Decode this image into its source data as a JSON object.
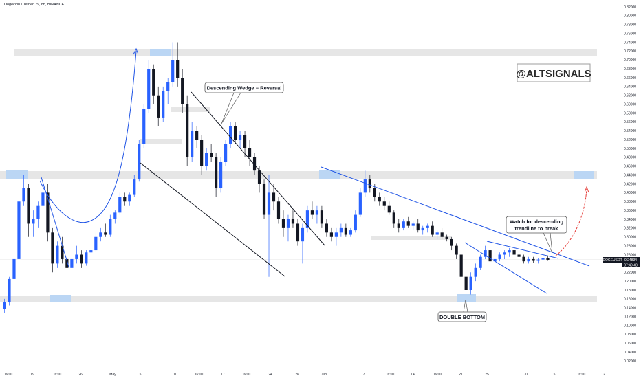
{
  "header": {
    "title": "Dogecoin / TetherUS, 8h, BINANCE"
  },
  "brand": {
    "label": "@ALTSIGNALS"
  },
  "price_tag": {
    "symbol": "DOGEUSDT",
    "price": "0.24834",
    "countdown": "07:49:48"
  },
  "annotations": {
    "wedge": "Descending Wedge = Reversal",
    "watch_line1": "Watch for descending",
    "watch_line2": "trendline to break",
    "double_bottom": "DOUBLE BOTTOM"
  },
  "colors": {
    "up": "#2962ff",
    "down": "#131722",
    "zone": "#e0e0e0",
    "zone_blue": "#bbd6f4",
    "trend_blue": "#1e53e5",
    "trend_black": "#131722",
    "red_arrow": "#e53935"
  },
  "chart_data": {
    "type": "candlestick",
    "title": "Dogecoin / TetherUS, 8h, BINANCE",
    "yticks": [
      "0.82000",
      "0.80000",
      "0.78000",
      "0.76000",
      "0.74000",
      "0.72000",
      "0.70000",
      "0.68000",
      "0.66000",
      "0.64000",
      "0.62000",
      "0.60000",
      "0.58000",
      "0.56000",
      "0.54000",
      "0.52000",
      "0.50000",
      "0.48000",
      "0.46000",
      "0.44000",
      "0.42000",
      "0.40000",
      "0.38000",
      "0.36000",
      "0.34000",
      "0.32000",
      "0.30000",
      "0.28000",
      "0.26000",
      "0.24000",
      "0.22000",
      "0.20000",
      "0.18000",
      "0.16000",
      "0.14000",
      "0.12000",
      "0.10000",
      "0.08000",
      "0.06000",
      "0.04000",
      "0.02000"
    ],
    "xticks": [
      "16:00",
      "19",
      "16:00",
      "26",
      "May",
      "5",
      "10",
      "16:00",
      "17",
      "16:00",
      "24",
      "28",
      "Jun",
      "7",
      "16:00",
      "14",
      "16:00",
      "21",
      "25",
      "Jul",
      "5",
      "16:00",
      "12"
    ],
    "ylim": [
      0.01,
      0.825
    ],
    "grid": false,
    "last_price": 0.24834,
    "zones": [
      0.72,
      0.44,
      0.16,
      0.58,
      0.52,
      0.29
    ],
    "ohlc": [
      [
        0.138,
        0.16,
        0.128,
        0.152
      ],
      [
        0.152,
        0.21,
        0.145,
        0.205
      ],
      [
        0.205,
        0.26,
        0.198,
        0.25
      ],
      [
        0.25,
        0.39,
        0.245,
        0.38
      ],
      [
        0.38,
        0.44,
        0.37,
        0.41
      ],
      [
        0.41,
        0.42,
        0.3,
        0.33
      ],
      [
        0.33,
        0.36,
        0.3,
        0.34
      ],
      [
        0.34,
        0.38,
        0.32,
        0.37
      ],
      [
        0.37,
        0.42,
        0.36,
        0.4
      ],
      [
        0.4,
        0.42,
        0.29,
        0.31
      ],
      [
        0.31,
        0.32,
        0.22,
        0.24
      ],
      [
        0.24,
        0.29,
        0.23,
        0.28
      ],
      [
        0.28,
        0.3,
        0.24,
        0.25
      ],
      [
        0.25,
        0.27,
        0.19,
        0.23
      ],
      [
        0.23,
        0.26,
        0.22,
        0.25
      ],
      [
        0.25,
        0.28,
        0.24,
        0.26
      ],
      [
        0.26,
        0.27,
        0.23,
        0.24
      ],
      [
        0.24,
        0.27,
        0.235,
        0.265
      ],
      [
        0.265,
        0.275,
        0.25,
        0.27
      ],
      [
        0.27,
        0.31,
        0.265,
        0.3
      ],
      [
        0.3,
        0.32,
        0.29,
        0.31
      ],
      [
        0.31,
        0.33,
        0.3,
        0.305
      ],
      [
        0.305,
        0.35,
        0.3,
        0.34
      ],
      [
        0.34,
        0.36,
        0.33,
        0.355
      ],
      [
        0.355,
        0.4,
        0.35,
        0.39
      ],
      [
        0.39,
        0.4,
        0.37,
        0.38
      ],
      [
        0.38,
        0.4,
        0.37,
        0.395
      ],
      [
        0.395,
        0.44,
        0.39,
        0.43
      ],
      [
        0.43,
        0.52,
        0.425,
        0.51
      ],
      [
        0.51,
        0.6,
        0.5,
        0.59
      ],
      [
        0.59,
        0.7,
        0.58,
        0.68
      ],
      [
        0.68,
        0.69,
        0.6,
        0.62
      ],
      [
        0.62,
        0.64,
        0.55,
        0.57
      ],
      [
        0.57,
        0.64,
        0.56,
        0.63
      ],
      [
        0.63,
        0.66,
        0.6,
        0.65
      ],
      [
        0.65,
        0.74,
        0.64,
        0.7
      ],
      [
        0.7,
        0.74,
        0.64,
        0.66
      ],
      [
        0.66,
        0.68,
        0.58,
        0.6
      ],
      [
        0.6,
        0.62,
        0.46,
        0.48
      ],
      [
        0.48,
        0.56,
        0.47,
        0.54
      ],
      [
        0.54,
        0.55,
        0.5,
        0.52
      ],
      [
        0.52,
        0.53,
        0.44,
        0.46
      ],
      [
        0.46,
        0.5,
        0.45,
        0.49
      ],
      [
        0.49,
        0.51,
        0.47,
        0.48
      ],
      [
        0.48,
        0.49,
        0.39,
        0.41
      ],
      [
        0.41,
        0.48,
        0.4,
        0.47
      ],
      [
        0.47,
        0.52,
        0.46,
        0.51
      ],
      [
        0.51,
        0.56,
        0.5,
        0.55
      ],
      [
        0.55,
        0.56,
        0.51,
        0.52
      ],
      [
        0.52,
        0.54,
        0.5,
        0.53
      ],
      [
        0.53,
        0.54,
        0.48,
        0.5
      ],
      [
        0.5,
        0.52,
        0.46,
        0.48
      ],
      [
        0.48,
        0.49,
        0.44,
        0.45
      ],
      [
        0.45,
        0.46,
        0.4,
        0.42
      ],
      [
        0.42,
        0.43,
        0.34,
        0.35
      ],
      [
        0.35,
        0.44,
        0.21,
        0.4
      ],
      [
        0.4,
        0.42,
        0.36,
        0.38
      ],
      [
        0.38,
        0.39,
        0.33,
        0.34
      ],
      [
        0.34,
        0.36,
        0.3,
        0.32
      ],
      [
        0.32,
        0.35,
        0.29,
        0.34
      ],
      [
        0.34,
        0.36,
        0.32,
        0.33
      ],
      [
        0.33,
        0.34,
        0.28,
        0.29
      ],
      [
        0.29,
        0.33,
        0.24,
        0.32
      ],
      [
        0.32,
        0.37,
        0.31,
        0.36
      ],
      [
        0.36,
        0.38,
        0.34,
        0.35
      ],
      [
        0.35,
        0.37,
        0.33,
        0.36
      ],
      [
        0.36,
        0.37,
        0.32,
        0.33
      ],
      [
        0.33,
        0.34,
        0.3,
        0.31
      ],
      [
        0.31,
        0.32,
        0.29,
        0.3
      ],
      [
        0.3,
        0.32,
        0.28,
        0.31
      ],
      [
        0.31,
        0.33,
        0.3,
        0.32
      ],
      [
        0.32,
        0.33,
        0.3,
        0.305
      ],
      [
        0.305,
        0.32,
        0.3,
        0.315
      ],
      [
        0.315,
        0.36,
        0.31,
        0.35
      ],
      [
        0.35,
        0.41,
        0.345,
        0.4
      ],
      [
        0.4,
        0.45,
        0.39,
        0.43
      ],
      [
        0.43,
        0.44,
        0.4,
        0.41
      ],
      [
        0.41,
        0.42,
        0.38,
        0.39
      ],
      [
        0.39,
        0.4,
        0.37,
        0.38
      ],
      [
        0.38,
        0.39,
        0.36,
        0.37
      ],
      [
        0.37,
        0.38,
        0.35,
        0.355
      ],
      [
        0.355,
        0.36,
        0.32,
        0.33
      ],
      [
        0.33,
        0.34,
        0.31,
        0.32
      ],
      [
        0.32,
        0.34,
        0.315,
        0.335
      ],
      [
        0.335,
        0.345,
        0.32,
        0.325
      ],
      [
        0.325,
        0.335,
        0.315,
        0.33
      ],
      [
        0.33,
        0.34,
        0.31,
        0.315
      ],
      [
        0.315,
        0.325,
        0.305,
        0.32
      ],
      [
        0.32,
        0.33,
        0.31,
        0.325
      ],
      [
        0.325,
        0.335,
        0.3,
        0.305
      ],
      [
        0.305,
        0.315,
        0.295,
        0.31
      ],
      [
        0.31,
        0.32,
        0.295,
        0.3
      ],
      [
        0.3,
        0.305,
        0.29,
        0.295
      ],
      [
        0.295,
        0.3,
        0.27,
        0.28
      ],
      [
        0.28,
        0.285,
        0.25,
        0.26
      ],
      [
        0.26,
        0.265,
        0.2,
        0.21
      ],
      [
        0.21,
        0.215,
        0.165,
        0.18
      ],
      [
        0.18,
        0.22,
        0.17,
        0.21
      ],
      [
        0.21,
        0.24,
        0.2,
        0.23
      ],
      [
        0.23,
        0.26,
        0.225,
        0.255
      ],
      [
        0.255,
        0.28,
        0.25,
        0.27
      ],
      [
        0.27,
        0.275,
        0.24,
        0.245
      ],
      [
        0.245,
        0.255,
        0.235,
        0.25
      ],
      [
        0.25,
        0.265,
        0.245,
        0.26
      ],
      [
        0.26,
        0.27,
        0.25,
        0.265
      ],
      [
        0.265,
        0.275,
        0.255,
        0.27
      ],
      [
        0.27,
        0.275,
        0.255,
        0.26
      ],
      [
        0.26,
        0.27,
        0.25,
        0.255
      ],
      [
        0.255,
        0.26,
        0.24,
        0.245
      ],
      [
        0.245,
        0.255,
        0.24,
        0.25
      ],
      [
        0.25,
        0.255,
        0.242,
        0.246
      ],
      [
        0.246,
        0.252,
        0.24,
        0.249
      ],
      [
        0.249,
        0.256,
        0.244,
        0.252
      ],
      [
        0.252,
        0.258,
        0.246,
        0.248
      ]
    ]
  }
}
